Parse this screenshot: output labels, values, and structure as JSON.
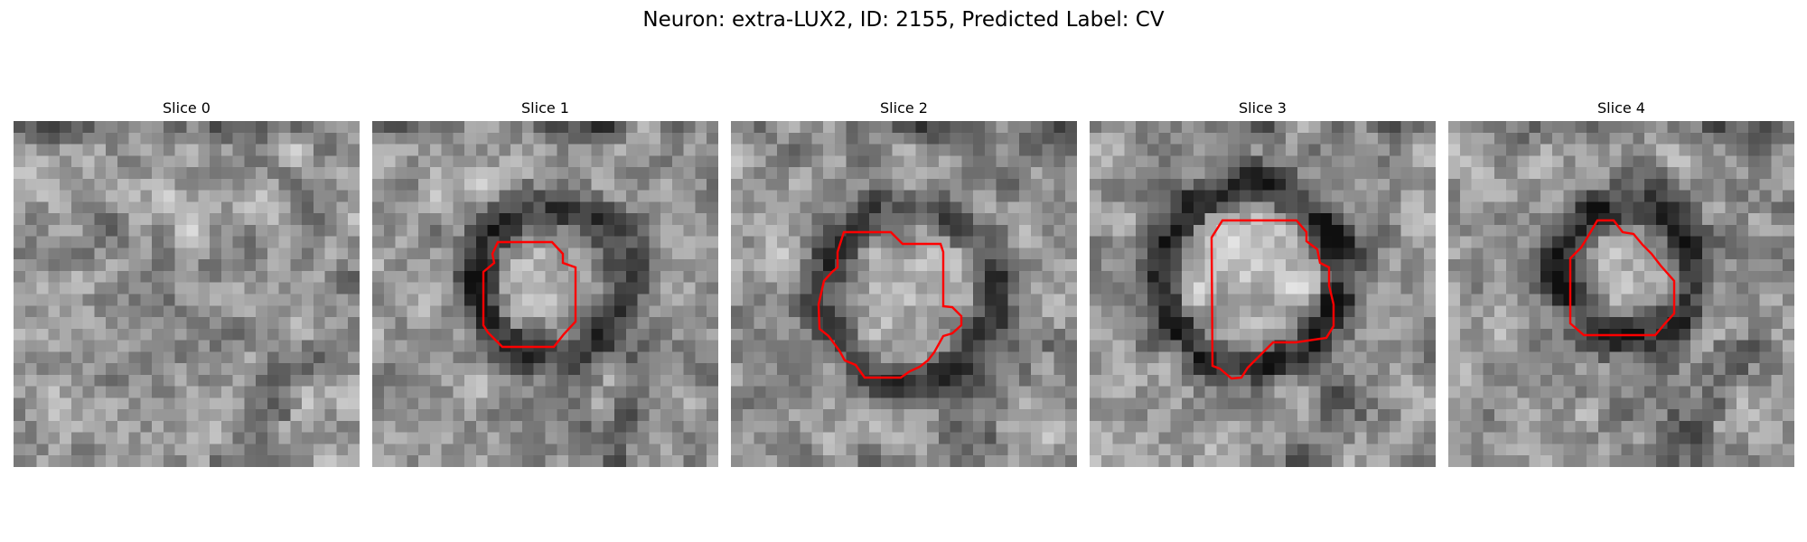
{
  "figure": {
    "title": "Neuron: extra-LUX2, ID: 2155, Predicted Label: CV"
  },
  "panels": [
    {
      "title": "Slice 0",
      "has_contour": false
    },
    {
      "title": "Slice 1",
      "has_contour": true
    },
    {
      "title": "Slice 2",
      "has_contour": true
    },
    {
      "title": "Slice 3",
      "has_contour": true
    },
    {
      "title": "Slice 4",
      "has_contour": true
    }
  ],
  "colors": {
    "contour": "#ff0000",
    "colormap": "grayscale"
  }
}
